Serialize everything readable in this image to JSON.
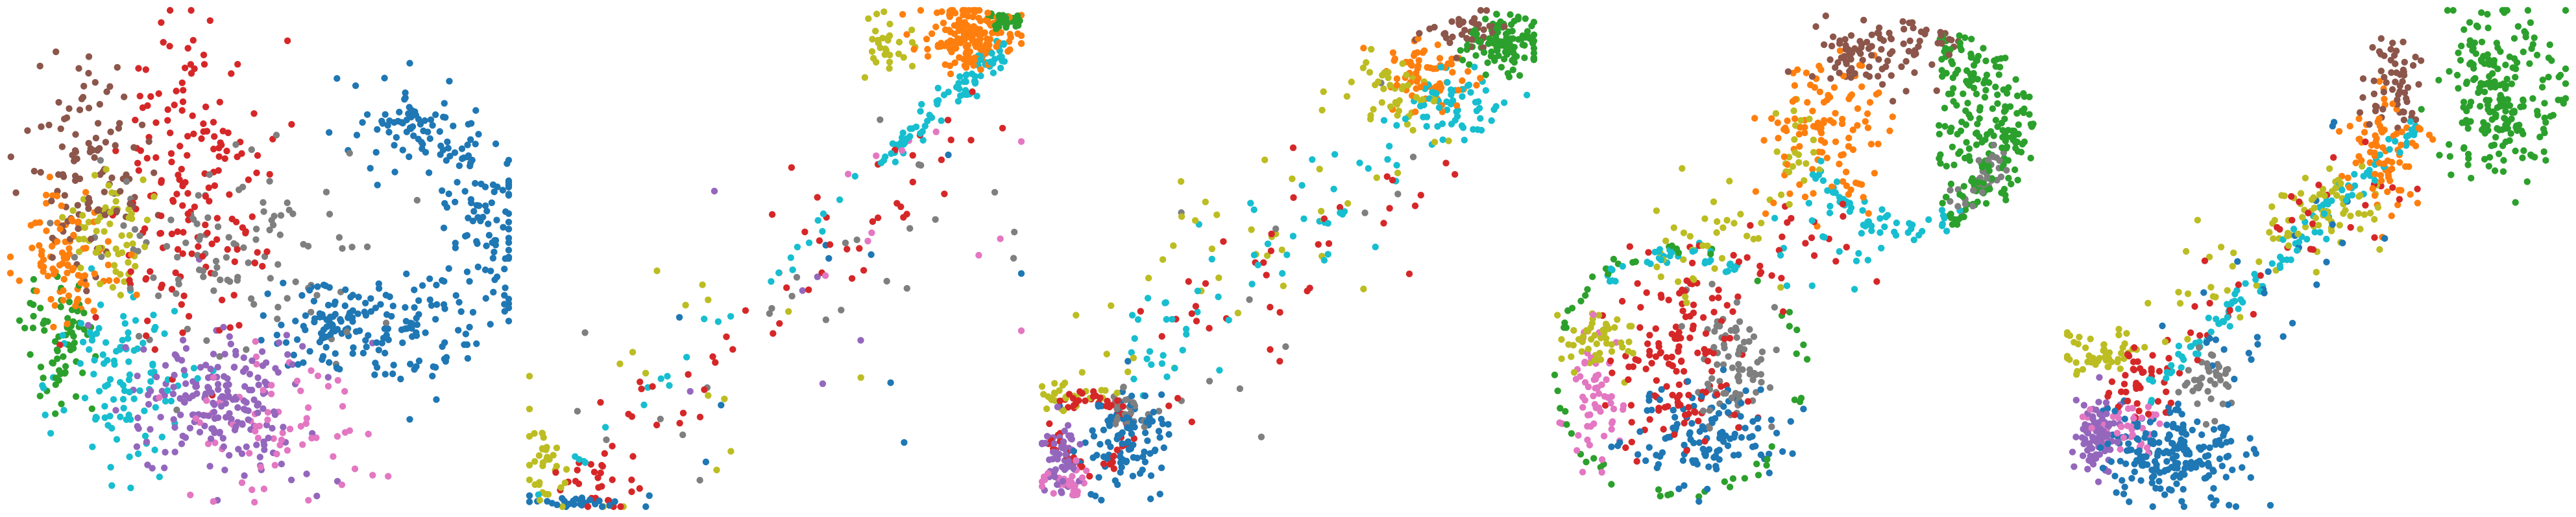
{
  "palette": {
    "blue": "#1f77b4",
    "orange": "#ff7f0e",
    "green": "#2ca02c",
    "red": "#d62728",
    "purple": "#9467bd",
    "brown": "#8c564b",
    "pink": "#e377c2",
    "gray": "#7f7f7f",
    "olive": "#bcbd22",
    "cyan": "#17becf"
  },
  "chart_data": [
    {
      "type": "scatter",
      "panel": 1,
      "title": "",
      "xlabel": "",
      "ylabel": "",
      "axes_visible": false,
      "grid": false,
      "legend": "none",
      "xlim": [
        0,
        100
      ],
      "ylim": [
        0,
        100
      ],
      "clusters": [
        {
          "color": "blue",
          "count": 260,
          "shape": "arc",
          "center": [
            74,
            56
          ],
          "radii": [
            18,
            26
          ],
          "angles": [
            -100,
            95
          ],
          "spread": 5
        },
        {
          "color": "blue",
          "count": 90,
          "center": [
            65,
            37
          ],
          "sd": [
            6,
            4
          ]
        },
        {
          "color": "red",
          "count": 170,
          "center": [
            36,
            64
          ],
          "sd": [
            8,
            17
          ]
        },
        {
          "color": "brown",
          "count": 110,
          "center": [
            15,
            69
          ],
          "sd": [
            6,
            10
          ]
        },
        {
          "color": "orange",
          "count": 90,
          "center": [
            11,
            50
          ],
          "sd": [
            5,
            6
          ]
        },
        {
          "color": "olive",
          "count": 60,
          "center": [
            20,
            56
          ],
          "sd": [
            4,
            6
          ]
        },
        {
          "color": "green",
          "count": 70,
          "center": [
            10,
            34
          ],
          "sd": [
            3,
            7
          ]
        },
        {
          "color": "cyan",
          "count": 110,
          "center": [
            23,
            25
          ],
          "sd": [
            7,
            8
          ]
        },
        {
          "color": "purple",
          "count": 200,
          "center": [
            42,
            20
          ],
          "sd": [
            9,
            8
          ]
        },
        {
          "color": "pink",
          "count": 70,
          "center": [
            52,
            17
          ],
          "sd": [
            11,
            7
          ]
        },
        {
          "color": "gray",
          "count": 110,
          "center": [
            44,
            50
          ],
          "sd": [
            12,
            10
          ]
        }
      ]
    },
    {
      "type": "scatter",
      "panel": 2,
      "title": "",
      "xlabel": "",
      "ylabel": "",
      "axes_visible": false,
      "grid": false,
      "legend": "none",
      "xlim": [
        0,
        100
      ],
      "ylim": [
        0,
        100
      ],
      "clusters": [
        {
          "color": "orange",
          "count": 170,
          "center": [
            90,
            95
          ],
          "sd": [
            5,
            3
          ]
        },
        {
          "color": "green",
          "count": 40,
          "center": [
            97,
            98
          ],
          "sd": [
            2,
            1
          ]
        },
        {
          "color": "olive",
          "count": 30,
          "center": [
            73,
            93
          ],
          "sd": [
            3,
            4
          ]
        },
        {
          "color": "cyan",
          "count": 110,
          "shape": "line",
          "from": [
            2,
            2
          ],
          "to": [
            97,
            93
          ],
          "spread": 1.4,
          "dense": [
            0.75,
            1.0
          ]
        },
        {
          "color": "red",
          "count": 60,
          "shape": "line",
          "from": [
            5,
            3
          ],
          "to": [
            95,
            82
          ],
          "spread": 6
        },
        {
          "color": "gray",
          "count": 25,
          "shape": "line",
          "from": [
            10,
            5
          ],
          "to": [
            90,
            70
          ],
          "spread": 10
        },
        {
          "color": "olive",
          "count": 20,
          "shape": "line",
          "from": [
            2,
            2
          ],
          "to": [
            40,
            60
          ],
          "spread": 18
        },
        {
          "color": "blue",
          "count": 30,
          "center": [
            10,
            1
          ],
          "sd": [
            8,
            1
          ]
        },
        {
          "color": "olive",
          "count": 30,
          "center": [
            3,
            8
          ],
          "sd": [
            2,
            4
          ]
        },
        {
          "color": "red",
          "count": 20,
          "center": [
            12,
            5
          ],
          "sd": [
            4,
            3
          ]
        },
        {
          "color": "pink",
          "count": 12,
          "center": [
            70,
            60
          ],
          "sd": [
            20,
            15
          ]
        },
        {
          "color": "blue",
          "count": 10,
          "center": [
            70,
            45
          ],
          "sd": [
            18,
            20
          ]
        },
        {
          "color": "purple",
          "count": 6,
          "center": [
            55,
            40
          ],
          "sd": [
            15,
            15
          ]
        }
      ]
    },
    {
      "type": "scatter",
      "panel": 3,
      "title": "",
      "xlabel": "",
      "ylabel": "",
      "axes_visible": false,
      "grid": false,
      "legend": "none",
      "xlim": [
        0,
        100
      ],
      "ylim": [
        0,
        100
      ],
      "clusters": [
        {
          "color": "green",
          "count": 110,
          "center": [
            94,
            93
          ],
          "sd": [
            4,
            3
          ]
        },
        {
          "color": "brown",
          "count": 40,
          "center": [
            86,
            96
          ],
          "sd": [
            4,
            2
          ]
        },
        {
          "color": "orange",
          "count": 70,
          "center": [
            79,
            87
          ],
          "sd": [
            4,
            4
          ]
        },
        {
          "color": "cyan",
          "count": 50,
          "center": [
            84,
            82
          ],
          "sd": [
            5,
            4
          ]
        },
        {
          "color": "olive",
          "count": 40,
          "center": [
            70,
            84
          ],
          "sd": [
            5,
            4
          ]
        },
        {
          "color": "blue",
          "count": 100,
          "center": [
            17,
            13
          ],
          "sd": [
            5,
            5
          ]
        },
        {
          "color": "purple",
          "count": 60,
          "center": [
            4,
            11
          ],
          "sd": [
            2,
            4
          ]
        },
        {
          "color": "pink",
          "count": 30,
          "center": [
            6,
            5
          ],
          "sd": [
            3,
            2
          ]
        },
        {
          "color": "red",
          "count": 60,
          "shape": "ring",
          "center": [
            10,
            15
          ],
          "radii": [
            6,
            9
          ]
        },
        {
          "color": "gray",
          "count": 30,
          "center": [
            18,
            19
          ],
          "sd": [
            2,
            2
          ]
        },
        {
          "color": "olive",
          "count": 30,
          "center": [
            5,
            22
          ],
          "sd": [
            4,
            2
          ]
        },
        {
          "color": "cyan",
          "count": 70,
          "shape": "line",
          "from": [
            15,
            25
          ],
          "to": [
            85,
            82
          ],
          "spread": 5
        },
        {
          "color": "red",
          "count": 40,
          "shape": "line",
          "from": [
            20,
            25
          ],
          "to": [
            80,
            75
          ],
          "spread": 7
        },
        {
          "color": "olive",
          "count": 40,
          "shape": "line",
          "from": [
            10,
            30
          ],
          "to": [
            75,
            80
          ],
          "spread": 8
        },
        {
          "color": "gray",
          "count": 12,
          "shape": "line",
          "from": [
            20,
            25
          ],
          "to": [
            80,
            80
          ],
          "spread": 10
        }
      ]
    },
    {
      "type": "scatter",
      "panel": 4,
      "title": "",
      "xlabel": "",
      "ylabel": "",
      "axes_visible": false,
      "grid": false,
      "legend": "none",
      "xlim": [
        0,
        100
      ],
      "ylim": [
        0,
        100
      ],
      "clusters": [
        {
          "color": "green",
          "count": 220,
          "shape": "halfdisk",
          "center": [
            78,
            76
          ],
          "radius": 20,
          "side": "right"
        },
        {
          "color": "brown",
          "count": 60,
          "center": [
            65,
            90
          ],
          "sd": [
            6,
            4
          ]
        },
        {
          "color": "orange",
          "count": 110,
          "center": [
            55,
            77
          ],
          "sd": [
            6,
            8
          ]
        },
        {
          "color": "olive",
          "count": 25,
          "center": [
            49,
            71
          ],
          "sd": [
            2,
            6
          ]
        },
        {
          "color": "cyan",
          "count": 50,
          "shape": "arc",
          "center": [
            72,
            76
          ],
          "radii": [
            19,
            21
          ],
          "angles": [
            200,
            300
          ],
          "spread": 1
        },
        {
          "color": "gray",
          "count": 40,
          "shape": "arc",
          "center": [
            72,
            76
          ],
          "radii": [
            17,
            21
          ],
          "angles": [
            300,
            350
          ],
          "spread": 1
        },
        {
          "color": "brown",
          "count": 40,
          "shape": "arc",
          "center": [
            72,
            76
          ],
          "radii": [
            19,
            21
          ],
          "angles": [
            60,
            140
          ],
          "spread": 1
        },
        {
          "color": "blue",
          "count": 120,
          "center": [
            31,
            15
          ],
          "sd": [
            7,
            5
          ]
        },
        {
          "color": "red",
          "count": 140,
          "center": [
            25,
            30
          ],
          "sd": [
            7,
            9
          ]
        },
        {
          "color": "gray",
          "count": 80,
          "center": [
            36,
            28
          ],
          "sd": [
            4,
            7
          ]
        },
        {
          "color": "pink",
          "count": 60,
          "center": [
            8,
            22
          ],
          "sd": [
            3,
            7
          ]
        },
        {
          "color": "olive",
          "count": 50,
          "center": [
            8,
            33
          ],
          "sd": [
            4,
            3
          ]
        },
        {
          "color": "green",
          "count": 60,
          "shape": "arc",
          "center": [
            25,
            27
          ],
          "radii": [
            24,
            26
          ],
          "angles": [
            0,
            360
          ],
          "spread": 0.5
        },
        {
          "color": "cyan",
          "count": 40,
          "shape": "arc",
          "center": [
            25,
            27
          ],
          "radii": [
            23,
            25
          ],
          "angles": [
            60,
            130
          ],
          "spread": 0.5
        },
        {
          "color": "olive",
          "count": 35,
          "shape": "line",
          "from": [
            20,
            45
          ],
          "to": [
            40,
            60
          ],
          "spread": 5
        },
        {
          "color": "red",
          "count": 25,
          "shape": "line",
          "from": [
            40,
            45
          ],
          "to": [
            60,
            60
          ],
          "spread": 6
        },
        {
          "color": "cyan",
          "count": 20,
          "shape": "line",
          "from": [
            45,
            50
          ],
          "to": [
            65,
            58
          ],
          "spread": 5
        }
      ]
    },
    {
      "type": "scatter",
      "panel": 5,
      "title": "",
      "xlabel": "",
      "ylabel": "",
      "axes_visible": false,
      "grid": false,
      "legend": "none",
      "xlim": [
        0,
        100
      ],
      "ylim": [
        0,
        100
      ],
      "clusters": [
        {
          "color": "green",
          "count": 220,
          "center": [
            87,
            83
          ],
          "sd": [
            6,
            9
          ]
        },
        {
          "color": "brown",
          "count": 60,
          "center": [
            66,
            86
          ],
          "sd": [
            3,
            5
          ]
        },
        {
          "color": "orange",
          "count": 80,
          "center": [
            63,
            73
          ],
          "sd": [
            4,
            6
          ]
        },
        {
          "color": "olive",
          "count": 60,
          "center": [
            54,
            60
          ],
          "sd": [
            5,
            4
          ]
        },
        {
          "color": "blue",
          "count": 200,
          "center": [
            21,
            10
          ],
          "sd": [
            7,
            5
          ]
        },
        {
          "color": "purple",
          "count": 90,
          "center": [
            6,
            14
          ],
          "sd": [
            2,
            4
          ]
        },
        {
          "color": "pink",
          "count": 40,
          "center": [
            12,
            17
          ],
          "sd": [
            4,
            3
          ]
        },
        {
          "color": "red",
          "count": 40,
          "center": [
            14,
            24
          ],
          "sd": [
            4,
            4
          ]
        },
        {
          "color": "gray",
          "count": 40,
          "center": [
            28,
            26
          ],
          "sd": [
            3,
            4
          ]
        },
        {
          "color": "olive",
          "count": 50,
          "center": [
            7,
            31
          ],
          "sd": [
            4,
            2
          ]
        },
        {
          "color": "cyan",
          "count": 110,
          "shape": "line",
          "from": [
            15,
            22
          ],
          "to": [
            70,
            77
          ],
          "spread": 1.2
        },
        {
          "color": "red",
          "count": 40,
          "shape": "line",
          "from": [
            15,
            25
          ],
          "to": [
            65,
            72
          ],
          "spread": 4
        },
        {
          "color": "blue",
          "count": 30,
          "shape": "line",
          "from": [
            25,
            25
          ],
          "to": [
            65,
            70
          ],
          "spread": 6
        },
        {
          "color": "olive",
          "count": 30,
          "shape": "line",
          "from": [
            20,
            35
          ],
          "to": [
            50,
            60
          ],
          "spread": 5
        }
      ]
    }
  ]
}
